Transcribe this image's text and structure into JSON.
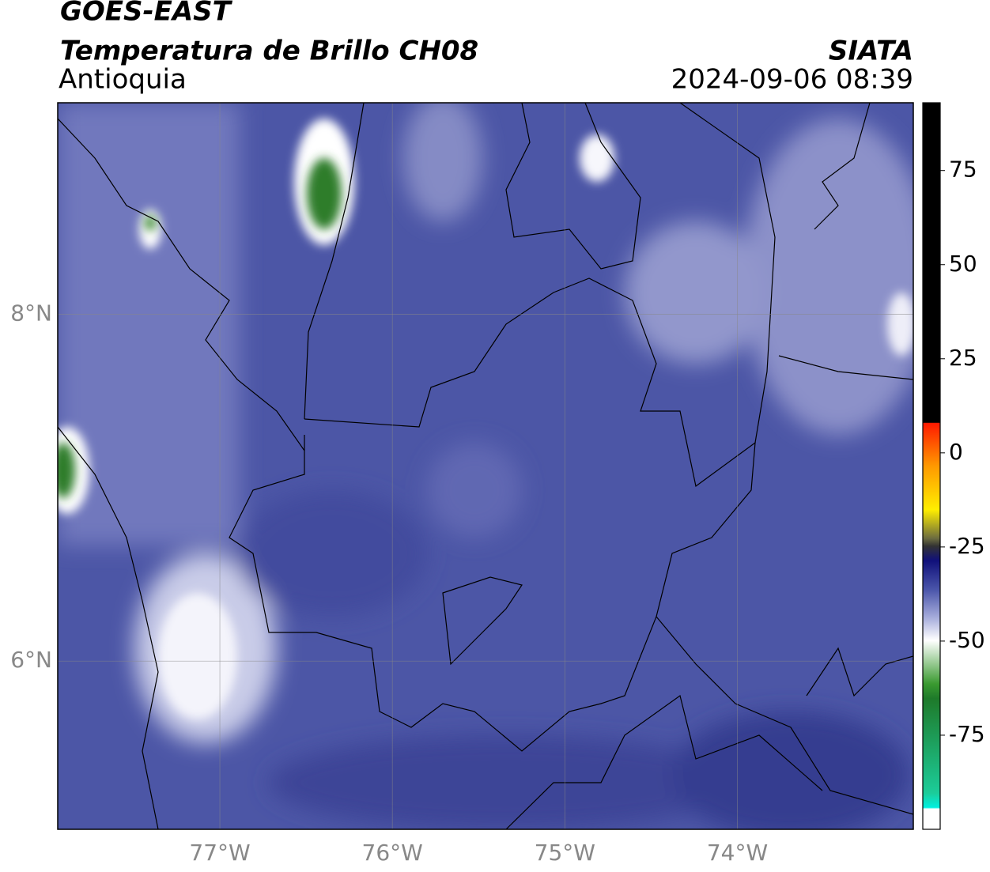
{
  "header": {
    "title": "GOES-EAST",
    "subtitle": "Temperatura de Brillo CH08",
    "region": "Antioquia",
    "source": "SIATA",
    "timestamp": "2024-09-06 08:39"
  },
  "map": {
    "xlim": [
      -77.94,
      -72.98
    ],
    "ylim": [
      5.03,
      9.22
    ],
    "xticks": [
      {
        "value": -77,
        "label": "77°W"
      },
      {
        "value": -76,
        "label": "76°W"
      },
      {
        "value": -75,
        "label": "75°W"
      },
      {
        "value": -74,
        "label": "74°W"
      }
    ],
    "yticks": [
      {
        "value": 8,
        "label": "8°N"
      },
      {
        "value": 6,
        "label": "6°N"
      }
    ],
    "grid": true
  },
  "colorbar": {
    "lim": [
      -100,
      93
    ],
    "ticks": [
      75,
      50,
      25,
      0,
      -25,
      -50,
      -75
    ]
  }
}
